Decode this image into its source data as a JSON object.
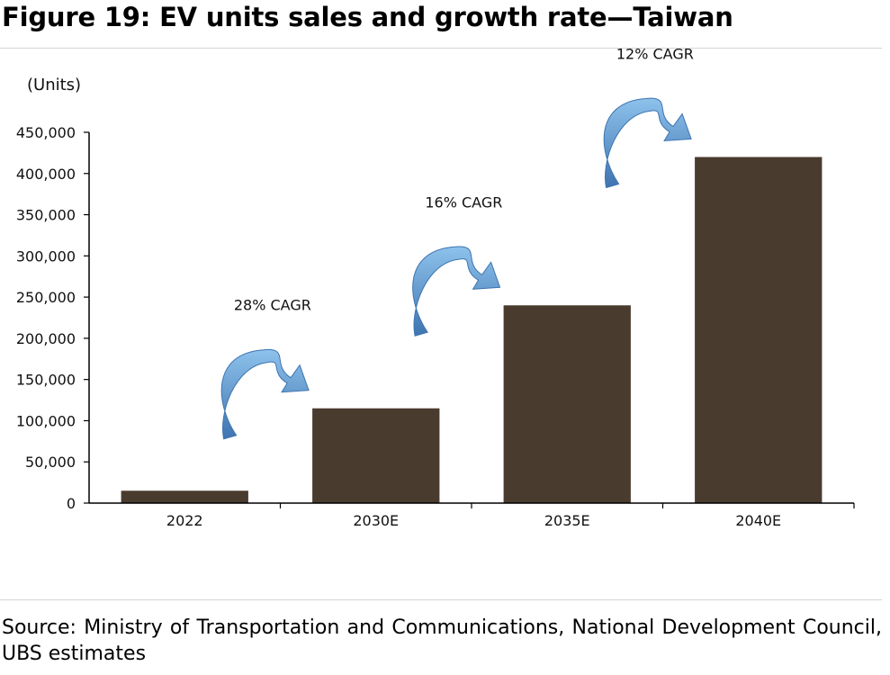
{
  "title": "Figure 19: EV units sales and growth rate—Taiwan",
  "source": "Source: Ministry of Transportation and Communications, National Development Council, UBS estimates",
  "colors": {
    "bar": "#4a3b2f",
    "arrow_light": "#8ec2ec",
    "arrow_dark": "#3e74b0",
    "axis": "#000000"
  },
  "chart_data": {
    "type": "bar",
    "title": "",
    "xlabel": "",
    "ylabel": "(Units)",
    "ylim": [
      0,
      450000
    ],
    "yticks": [
      0,
      50000,
      100000,
      150000,
      200000,
      250000,
      300000,
      350000,
      400000,
      450000
    ],
    "ytick_labels": [
      "0",
      "50,000",
      "100,000",
      "150,000",
      "200,000",
      "250,000",
      "300,000",
      "350,000",
      "400,000",
      "450,000"
    ],
    "categories": [
      "2022",
      "2030E",
      "2035E",
      "2040E"
    ],
    "values": [
      15000,
      115000,
      240000,
      420000
    ],
    "grid": false,
    "legend": "none",
    "annotations": [
      {
        "text": "28% CAGR",
        "from": "2022",
        "to": "2030E"
      },
      {
        "text": "16% CAGR",
        "from": "2030E",
        "to": "2035E"
      },
      {
        "text": "12% CAGR",
        "from": "2035E",
        "to": "2040E"
      }
    ]
  }
}
